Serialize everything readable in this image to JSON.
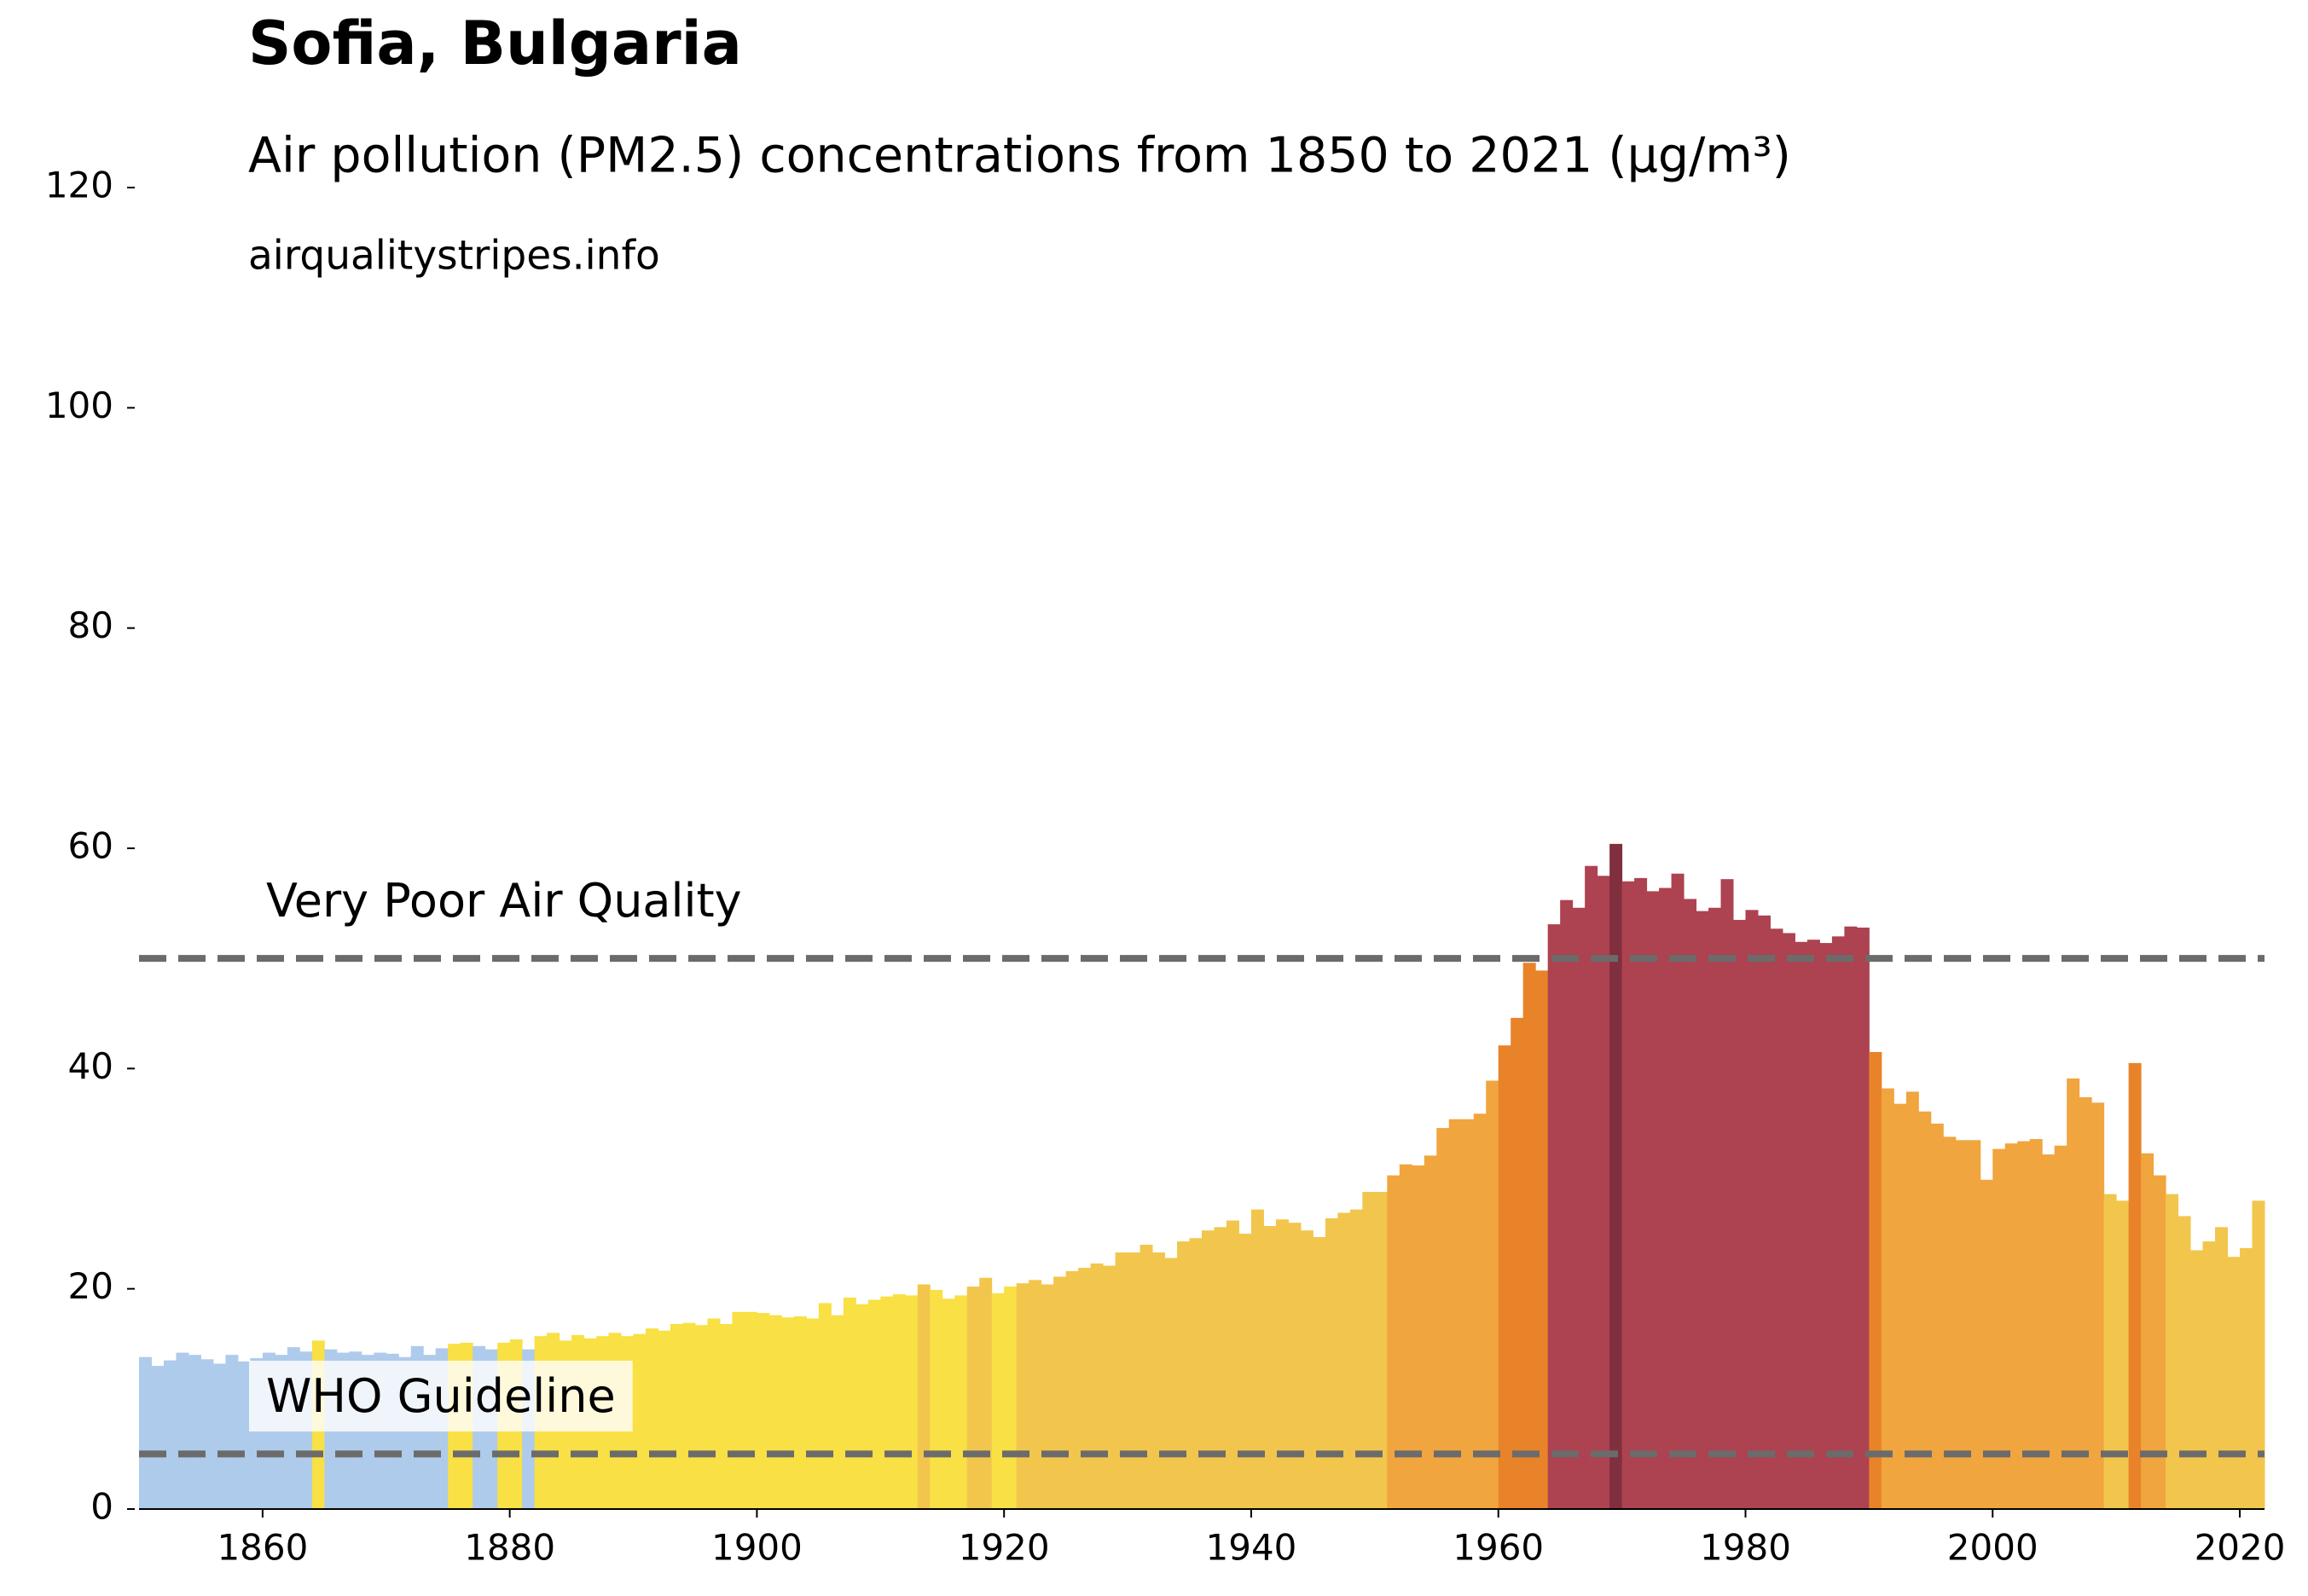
{
  "chart_data": {
    "type": "bar",
    "title": "Sofia, Bulgaria",
    "subtitle": "Air pollution (PM2.5) concentrations from 1850 to 2021 (µg/m³)",
    "source": "airqualitystripes.info",
    "x": [
      1850,
      1851,
      1852,
      1853,
      1854,
      1855,
      1856,
      1857,
      1858,
      1859,
      1860,
      1861,
      1862,
      1863,
      1864,
      1865,
      1866,
      1867,
      1868,
      1869,
      1870,
      1871,
      1872,
      1873,
      1874,
      1875,
      1876,
      1877,
      1878,
      1879,
      1880,
      1881,
      1882,
      1883,
      1884,
      1885,
      1886,
      1887,
      1888,
      1889,
      1890,
      1891,
      1892,
      1893,
      1894,
      1895,
      1896,
      1897,
      1898,
      1899,
      1900,
      1901,
      1902,
      1903,
      1904,
      1905,
      1906,
      1907,
      1908,
      1909,
      1910,
      1911,
      1912,
      1913,
      1914,
      1915,
      1916,
      1917,
      1918,
      1919,
      1920,
      1921,
      1922,
      1923,
      1924,
      1925,
      1926,
      1927,
      1928,
      1929,
      1930,
      1931,
      1932,
      1933,
      1934,
      1935,
      1936,
      1937,
      1938,
      1939,
      1940,
      1941,
      1942,
      1943,
      1944,
      1945,
      1946,
      1947,
      1948,
      1949,
      1950,
      1951,
      1952,
      1953,
      1954,
      1955,
      1956,
      1957,
      1958,
      1959,
      1960,
      1961,
      1962,
      1963,
      1964,
      1965,
      1966,
      1967,
      1968,
      1969,
      1970,
      1971,
      1972,
      1973,
      1974,
      1975,
      1976,
      1977,
      1978,
      1979,
      1980,
      1981,
      1982,
      1983,
      1984,
      1985,
      1986,
      1987,
      1988,
      1989,
      1990,
      1991,
      1992,
      1993,
      1994,
      1995,
      1996,
      1997,
      1998,
      1999,
      2000,
      2001,
      2002,
      2003,
      2004,
      2005,
      2006,
      2007,
      2008,
      2009,
      2010,
      2011,
      2012,
      2013,
      2014,
      2015,
      2016,
      2017,
      2018,
      2019,
      2020,
      2021
    ],
    "series": [
      {
        "values": [
          13.8,
          13.0,
          13.5,
          14.2,
          14.0,
          13.6,
          13.2,
          14.0,
          13.4,
          13.7,
          14.2,
          14.0,
          14.7,
          14.3,
          15.3,
          14.5,
          14.2,
          14.3,
          14.0,
          14.2,
          14.1,
          13.8,
          14.8,
          14.0,
          14.6,
          15.0,
          15.1,
          14.8,
          14.5,
          15.1,
          15.4,
          14.5,
          15.7,
          16.0,
          15.3,
          15.8,
          15.5,
          15.7,
          16.0,
          15.7,
          15.9,
          16.4,
          16.2,
          16.8,
          16.9,
          16.7,
          17.3,
          16.8,
          17.9,
          17.9,
          17.8,
          17.6,
          17.4,
          17.5,
          17.3,
          18.7,
          17.6,
          19.2,
          18.6,
          19.0,
          19.3,
          19.5,
          19.4,
          20.4,
          19.9,
          19.1,
          19.4,
          20.2,
          21.0,
          19.6,
          20.2,
          20.5,
          20.8,
          20.4,
          21.1,
          21.6,
          21.9,
          22.3,
          22.1,
          23.3,
          23.3,
          24.0,
          23.3,
          22.8,
          24.3,
          24.6,
          25.3,
          25.6,
          26.2,
          25.0,
          27.2,
          25.7,
          26.3,
          26.0,
          25.3,
          24.7,
          26.4,
          26.9,
          27.2,
          28.8,
          28.8,
          30.3,
          31.3,
          31.2,
          32.1,
          34.6,
          35.4,
          35.4,
          35.9,
          38.9,
          42.1,
          44.6,
          49.6,
          48.9,
          53.1,
          55.3,
          54.6,
          58.4,
          57.5,
          60.4,
          57.0,
          57.3,
          56.1,
          56.4,
          57.7,
          55.4,
          54.3,
          54.6,
          57.2,
          53.5,
          54.4,
          53.9,
          52.7,
          52.3,
          51.5,
          51.7,
          51.4,
          52.0,
          52.9,
          52.8,
          41.5,
          38.2,
          36.8,
          37.9,
          36.1,
          35.0,
          33.8,
          33.5,
          33.5,
          29.9,
          32.7,
          33.2,
          33.4,
          33.6,
          32.2,
          33.0,
          39.1,
          37.4,
          36.9,
          28.6,
          28.0,
          40.5,
          32.3,
          30.3,
          28.6,
          26.6,
          23.5,
          24.3,
          25.6,
          22.9,
          23.7,
          28.0
        ],
        "colors": [
          "#aecbeb",
          "#aecbeb",
          "#aecbeb",
          "#aecbeb",
          "#aecbeb",
          "#aecbeb",
          "#aecbeb",
          "#aecbeb",
          "#aecbeb",
          "#aecbeb",
          "#aecbeb",
          "#aecbeb",
          "#aecbeb",
          "#aecbeb",
          "#f8e045",
          "#aecbeb",
          "#aecbeb",
          "#aecbeb",
          "#aecbeb",
          "#aecbeb",
          "#aecbeb",
          "#aecbeb",
          "#aecbeb",
          "#aecbeb",
          "#aecbeb",
          "#f8e045",
          "#f8e045",
          "#aecbeb",
          "#aecbeb",
          "#f8e045",
          "#f8e045",
          "#aecbeb",
          "#f8e045",
          "#f8e045",
          "#f8e045",
          "#f8e045",
          "#f8e045",
          "#f8e045",
          "#f8e045",
          "#f8e045",
          "#f8e045",
          "#f8e045",
          "#f8e045",
          "#f8e045",
          "#f8e045",
          "#f8e045",
          "#f8e045",
          "#f8e045",
          "#f8e045",
          "#f8e045",
          "#f8e045",
          "#f8e045",
          "#f8e045",
          "#f8e045",
          "#f8e045",
          "#f8e045",
          "#f8e045",
          "#f8e045",
          "#f8e045",
          "#f8e045",
          "#f8e045",
          "#f8e045",
          "#f8e045",
          "#f2c64c",
          "#f8e045",
          "#f8e045",
          "#f8e045",
          "#f2c64c",
          "#f2c64c",
          "#f8e045",
          "#f8e045",
          "#f2c64c",
          "#f2c64c",
          "#f2c64c",
          "#f2c64c",
          "#f2c64c",
          "#f2c64c",
          "#f2c64c",
          "#f2c64c",
          "#f2c64c",
          "#f2c64c",
          "#f2c64c",
          "#f2c64c",
          "#f2c64c",
          "#f2c64c",
          "#f2c64c",
          "#f2c64c",
          "#f2c64c",
          "#f2c64c",
          "#f2c64c",
          "#f2c64c",
          "#f2c64c",
          "#f2c64c",
          "#f2c64c",
          "#f2c64c",
          "#f2c64c",
          "#f2c64c",
          "#f2c64c",
          "#f2c64c",
          "#f2c64c",
          "#f2c64c",
          "#f0a53f",
          "#f0a53f",
          "#f0a53f",
          "#f0a53f",
          "#f0a53f",
          "#f0a53f",
          "#f0a53f",
          "#f0a53f",
          "#f0a53f",
          "#e8832a",
          "#e8832a",
          "#e8832a",
          "#e8832a",
          "#ad4250",
          "#ad4250",
          "#ad4250",
          "#ad4250",
          "#ad4250",
          "#7f2f3e",
          "#ad4250",
          "#ad4250",
          "#ad4250",
          "#ad4250",
          "#ad4250",
          "#ad4250",
          "#ad4250",
          "#ad4250",
          "#ad4250",
          "#ad4250",
          "#ad4250",
          "#ad4250",
          "#ad4250",
          "#ad4250",
          "#ad4250",
          "#ad4250",
          "#ad4250",
          "#ad4250",
          "#ad4250",
          "#ad4250",
          "#e8832a",
          "#f0a53f",
          "#f0a53f",
          "#f0a53f",
          "#f0a53f",
          "#f0a53f",
          "#f0a53f",
          "#f0a53f",
          "#f0a53f",
          "#f0a53f",
          "#f0a53f",
          "#f0a53f",
          "#f0a53f",
          "#f0a53f",
          "#f0a53f",
          "#f0a53f",
          "#f0a53f",
          "#f0a53f",
          "#f0a53f",
          "#f2c64c",
          "#f2c64c",
          "#e8832a",
          "#f0a53f",
          "#f0a53f",
          "#f2c64c",
          "#f2c64c",
          "#f2c64c",
          "#f2c64c",
          "#f2c64c",
          "#f2c64c",
          "#f2c64c",
          "#f2c64c"
        ]
      }
    ],
    "guidelines": [
      {
        "label": "Very Poor Air Quality",
        "value": 50,
        "color": "#6b6b6b"
      },
      {
        "label": "WHO Guideline",
        "value": 5,
        "color": "#6b6b6b"
      }
    ],
    "xlim": [
      1850,
      2022
    ],
    "xticks": [
      1860,
      1880,
      1900,
      1920,
      1940,
      1960,
      1980,
      2000,
      2020
    ],
    "ylim": [
      0,
      122
    ],
    "yticks": [
      0,
      20,
      40,
      60,
      80,
      100,
      120
    ]
  }
}
